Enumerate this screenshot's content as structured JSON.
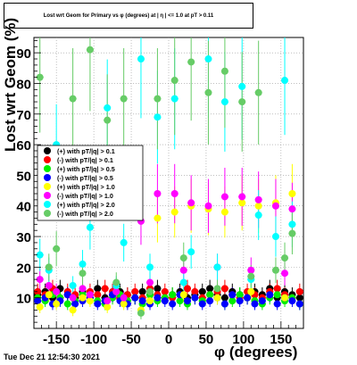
{
  "title": "Lost wrt Geom for Primary vs φ (degrees) at | η | <= 1.0 at pT > 0.11",
  "date_stamp": "Tue Dec 21 12:54:30 2021",
  "chart_data": {
    "type": "scatter",
    "xlabel": "φ (degrees)",
    "ylabel": "Lost wrt Geom (%)",
    "xlim": [
      -180,
      180
    ],
    "ylim": [
      0,
      95
    ],
    "x_ticks": [
      -150,
      -100,
      -50,
      0,
      50,
      100,
      150
    ],
    "y_ticks": [
      10,
      20,
      30,
      40,
      50,
      60,
      70,
      80,
      90
    ],
    "legend_position": "left-middle",
    "series": [
      {
        "name": "(+) with pT/|q| > 0.1",
        "color": "#000000",
        "x": [
          -175,
          -165,
          -155,
          -145,
          -135,
          -125,
          -115,
          -105,
          -95,
          -85,
          -75,
          -65,
          -55,
          -45,
          -35,
          -25,
          -15,
          -5,
          5,
          15,
          25,
          35,
          45,
          55,
          65,
          75,
          85,
          95,
          105,
          115,
          125,
          135,
          145,
          155,
          165,
          175
        ],
        "y": [
          11,
          12,
          10,
          13,
          11,
          10,
          12,
          11,
          13,
          10,
          11,
          12,
          11,
          10,
          12,
          11,
          13,
          10,
          11,
          12,
          10,
          11,
          12,
          13,
          11,
          10,
          12,
          11,
          10,
          12,
          11,
          13,
          10,
          12,
          11,
          10
        ]
      },
      {
        "name": "(-) with pT/|q| > 0.1",
        "color": "#ff0000",
        "x": [
          -175,
          -165,
          -155,
          -145,
          -135,
          -125,
          -115,
          -105,
          -95,
          -85,
          -75,
          -65,
          -55,
          -45,
          -35,
          -25,
          -15,
          -5,
          5,
          15,
          25,
          35,
          45,
          55,
          65,
          75,
          85,
          95,
          105,
          115,
          125,
          135,
          145,
          155,
          165,
          175
        ],
        "y": [
          12,
          11,
          13,
          10,
          12,
          11,
          10,
          12,
          11,
          13,
          12,
          10,
          11,
          12,
          10,
          13,
          11,
          12,
          10,
          11,
          13,
          12,
          10,
          11,
          12,
          13,
          11,
          10,
          12,
          11,
          10,
          12,
          13,
          11,
          10,
          12
        ]
      },
      {
        "name": "(+) with pT/|q| > 0.5",
        "color": "#00ee00",
        "x": [
          -175,
          -165,
          -155,
          -145,
          -135,
          -125,
          -115,
          -105,
          -95,
          -85,
          -75,
          -65,
          -55,
          -45,
          -35,
          -25,
          -15,
          -5,
          5,
          15,
          25,
          35,
          45,
          55,
          65,
          75,
          85,
          95,
          105,
          115,
          125,
          135,
          145,
          155,
          165,
          175
        ],
        "y": [
          10,
          9,
          11,
          10,
          8,
          9,
          11,
          10,
          9,
          8,
          10,
          11,
          9,
          10,
          8,
          11,
          9,
          10,
          11,
          9,
          8,
          10,
          9,
          11,
          10,
          8,
          9,
          11,
          10,
          9,
          8,
          10,
          11,
          9,
          10,
          8
        ]
      },
      {
        "name": "(-) with pT/|q| > 0.5",
        "color": "#0000ff",
        "x": [
          -175,
          -165,
          -155,
          -145,
          -135,
          -125,
          -115,
          -105,
          -95,
          -85,
          -75,
          -65,
          -55,
          -45,
          -35,
          -25,
          -15,
          -5,
          5,
          15,
          25,
          35,
          45,
          55,
          65,
          75,
          85,
          95,
          105,
          115,
          125,
          135,
          145,
          155,
          165,
          175
        ],
        "y": [
          9,
          10,
          8,
          9,
          11,
          8,
          9,
          10,
          8,
          9,
          11,
          9,
          8,
          10,
          9,
          8,
          10,
          9,
          8,
          11,
          9,
          10,
          8,
          9,
          10,
          8,
          11,
          9,
          10,
          8,
          9,
          11,
          8,
          10,
          9,
          8
        ]
      },
      {
        "name": "(+) with pT/|q| > 1.0",
        "color": "#ffff00",
        "x": [
          -172,
          -150,
          -128,
          -105,
          -82,
          -60,
          -37,
          -15,
          8,
          30,
          53,
          75,
          98,
          120,
          143,
          165,
          -160,
          -115,
          -70,
          -25,
          20,
          65,
          110,
          155
        ],
        "y": [
          7,
          8,
          6,
          9,
          7,
          8,
          6,
          36,
          38,
          40,
          39,
          38,
          41,
          40,
          41,
          44,
          11,
          10,
          12,
          9,
          11,
          10,
          12,
          10
        ]
      },
      {
        "name": "(-) with pT/|q| > 1.0",
        "color": "#ff00ff",
        "x": [
          -172,
          -150,
          -128,
          -105,
          -82,
          -60,
          -37,
          -15,
          8,
          30,
          53,
          75,
          98,
          120,
          143,
          165,
          -160,
          -115,
          -70,
          -25,
          20,
          65,
          110,
          155
        ],
        "y": [
          16,
          12,
          10,
          11,
          9,
          10,
          35,
          44,
          44,
          41,
          40,
          43,
          43,
          42,
          40,
          39,
          14,
          13,
          12,
          15,
          19,
          20,
          19,
          18
        ]
      },
      {
        "name": "(+) with pT/|q| > 2.0",
        "color": "#00ffff",
        "x": [
          -172,
          -150,
          -128,
          -105,
          -82,
          -60,
          -37,
          -15,
          8,
          30,
          53,
          75,
          98,
          120,
          143,
          165,
          -160,
          -115,
          -70,
          -25,
          20,
          65,
          110,
          155
        ],
        "y": [
          24,
          60,
          14,
          33,
          72,
          28,
          88,
          69,
          75,
          25,
          88,
          74,
          79,
          37,
          30,
          34,
          19,
          21,
          14,
          20,
          15,
          20,
          16,
          81
        ]
      },
      {
        "name": "(-) with pT/|q| > 2.0",
        "color": "#66cc66",
        "x": [
          -172,
          -150,
          -128,
          -105,
          -82,
          -60,
          -37,
          -15,
          8,
          30,
          53,
          75,
          98,
          120,
          143,
          165,
          -160,
          -115,
          -70,
          -25,
          20,
          65,
          110,
          155
        ],
        "y": [
          82,
          26,
          75,
          91,
          68,
          75,
          5,
          75,
          81,
          87,
          77,
          84,
          74,
          77,
          19,
          31,
          20,
          18,
          15,
          12,
          23,
          13,
          17,
          23
        ]
      }
    ]
  }
}
